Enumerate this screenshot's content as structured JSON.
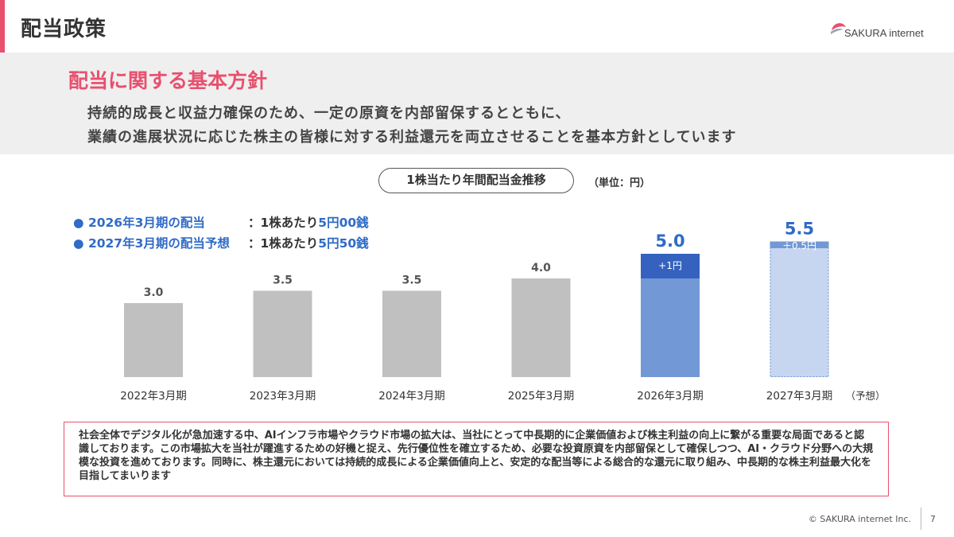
{
  "header": {
    "title": "配当政策",
    "logo_text": "SAKURA internet"
  },
  "policy": {
    "heading": "配当に関する基本方針",
    "lines": [
      "持続的成長と収益力確保のため、一定の原資を内部留保するとともに、",
      "業績の進展状況に応じた株主の皆様に対する利益還元を両立させることを基本方針としています"
    ]
  },
  "chart_header": {
    "title": "1株当たり年間配当金推移",
    "unit": "（単位：円）"
  },
  "notes": [
    {
      "bullet": "●",
      "period": "2026年3月期の配当",
      "separator": "：1株あたり",
      "amount": "5円00銭"
    },
    {
      "bullet": "●",
      "period": "2027年3月期の配当予想",
      "separator": "：1株あたり",
      "amount": "5円50銭"
    }
  ],
  "chart_data": {
    "type": "bar",
    "categories": [
      "2022年3月期",
      "2023年3月期",
      "2024年3月期",
      "2025年3月期",
      "2026年3月期",
      "2027年3月期"
    ],
    "values": [
      3.0,
      3.5,
      3.5,
      4.0,
      5.0,
      5.5
    ],
    "value_labels": [
      "3.0",
      "3.5",
      "3.5",
      "4.0",
      "5.0",
      "5.5"
    ],
    "increments": [
      null,
      null,
      null,
      null,
      {
        "value": 1.0,
        "label": "+1円"
      },
      {
        "value": 0.5,
        "label": "＋0.5円"
      }
    ],
    "forecast_suffix": "（予想）",
    "forecast_index": 5,
    "ylim": [
      0,
      6
    ],
    "colors": {
      "past": "#c0c0c0",
      "current": "#7398d6",
      "current_increment": "#3462be",
      "forecast": "#c7d6f0",
      "forecast_increment": "#7398d6",
      "highlight_label": "#2f6bc7",
      "normal_label": "#555555"
    }
  },
  "comment": {
    "text": "社会全体でデジタル化が急加速する中、AIインフラ市場やクラウド市場の拡大は、当社にとって中長期的に企業価値および株主利益の向上に繋がる重要な局面であると認識しております。この市場拡大を当社が躍進するための好機と捉え、先行優位性を確立するため、必要な投資原資を内部留保として確保しつつ、AI・クラウド分野への大規模な投資を進めております。同時に、株主還元においては持続的成長による企業価値向上と、安定的な配当等による総合的な還元に取り組み、中長期的な株主利益最大化を目指してまいります"
  },
  "footer": {
    "copyright": "© SAKURA internet Inc.",
    "page": "7"
  }
}
